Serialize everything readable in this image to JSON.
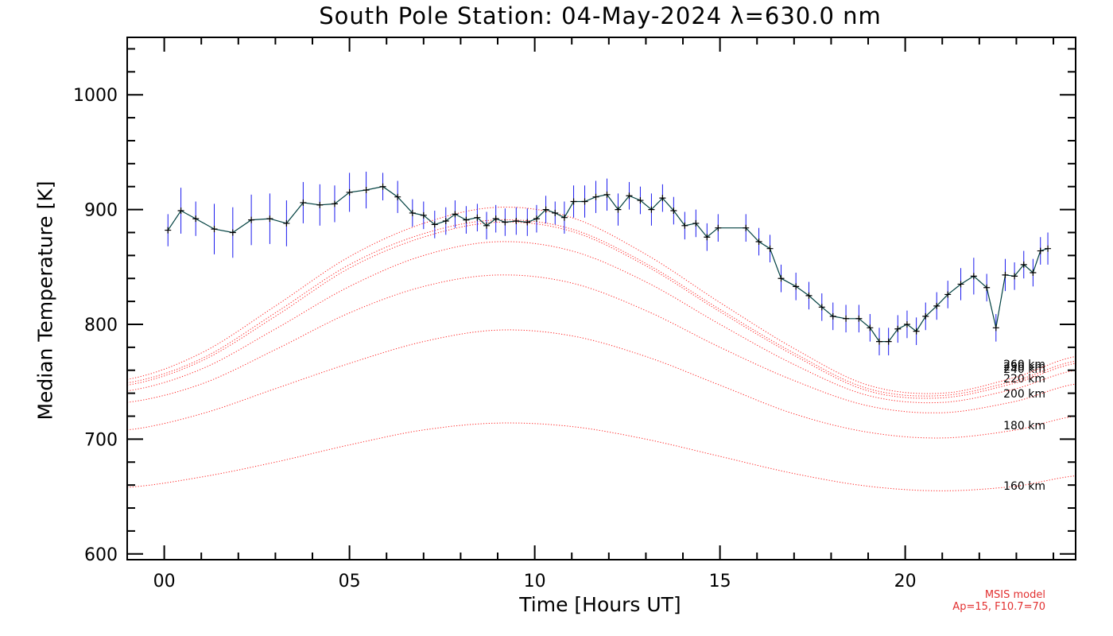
{
  "chart_data": {
    "type": "line",
    "title": "South Pole Station: 04-May-2024 λ=630.0 nm",
    "xlabel": "Time [Hours UT]",
    "ylabel": "Median Temperature [K]",
    "xlim": [
      -1.0,
      24.6
    ],
    "ylim": [
      595,
      1050
    ],
    "x_ticks": [
      0,
      5,
      10,
      15,
      20
    ],
    "x_tick_labels": [
      "00",
      "05",
      "10",
      "15",
      "20"
    ],
    "y_ticks": [
      600,
      700,
      800,
      900,
      1000
    ],
    "y_tick_labels": [
      "600",
      "700",
      "800",
      "900",
      "1000"
    ],
    "series": [
      {
        "color": "#004040",
        "errorbar_color": "#1a1aee",
        "points": [
          {
            "x": 0.1,
            "y": 882,
            "err": 14
          },
          {
            "x": 0.45,
            "y": 899,
            "err": 20
          },
          {
            "x": 0.85,
            "y": 892,
            "err": 15
          },
          {
            "x": 1.35,
            "y": 883,
            "err": 22
          },
          {
            "x": 1.85,
            "y": 880,
            "err": 22
          },
          {
            "x": 2.35,
            "y": 891,
            "err": 22
          },
          {
            "x": 2.85,
            "y": 892,
            "err": 22
          },
          {
            "x": 3.3,
            "y": 888,
            "err": 20
          },
          {
            "x": 3.75,
            "y": 906,
            "err": 18
          },
          {
            "x": 4.2,
            "y": 904,
            "err": 18
          },
          {
            "x": 4.6,
            "y": 905,
            "err": 16
          },
          {
            "x": 5.0,
            "y": 915,
            "err": 17
          },
          {
            "x": 5.45,
            "y": 917,
            "err": 16
          },
          {
            "x": 5.9,
            "y": 920,
            "err": 12
          },
          {
            "x": 6.3,
            "y": 911,
            "err": 14
          },
          {
            "x": 6.7,
            "y": 897,
            "err": 12
          },
          {
            "x": 7.0,
            "y": 895,
            "err": 12
          },
          {
            "x": 7.3,
            "y": 887,
            "err": 12
          },
          {
            "x": 7.6,
            "y": 890,
            "err": 12
          },
          {
            "x": 7.85,
            "y": 896,
            "err": 12
          },
          {
            "x": 8.15,
            "y": 891,
            "err": 12
          },
          {
            "x": 8.45,
            "y": 893,
            "err": 12
          },
          {
            "x": 8.7,
            "y": 886,
            "err": 12
          },
          {
            "x": 8.95,
            "y": 892,
            "err": 12
          },
          {
            "x": 9.2,
            "y": 889,
            "err": 12
          },
          {
            "x": 9.5,
            "y": 890,
            "err": 12
          },
          {
            "x": 9.8,
            "y": 889,
            "err": 12
          },
          {
            "x": 10.05,
            "y": 892,
            "err": 12
          },
          {
            "x": 10.3,
            "y": 900,
            "err": 12
          },
          {
            "x": 10.55,
            "y": 897,
            "err": 10
          },
          {
            "x": 10.8,
            "y": 893,
            "err": 14
          },
          {
            "x": 11.05,
            "y": 907,
            "err": 14
          },
          {
            "x": 11.35,
            "y": 907,
            "err": 14
          },
          {
            "x": 11.65,
            "y": 911,
            "err": 14
          },
          {
            "x": 11.95,
            "y": 913,
            "err": 14
          },
          {
            "x": 12.25,
            "y": 900,
            "err": 14
          },
          {
            "x": 12.55,
            "y": 912,
            "err": 12
          },
          {
            "x": 12.85,
            "y": 908,
            "err": 12
          },
          {
            "x": 13.15,
            "y": 900,
            "err": 14
          },
          {
            "x": 13.45,
            "y": 910,
            "err": 12
          },
          {
            "x": 13.75,
            "y": 899,
            "err": 12
          },
          {
            "x": 14.05,
            "y": 886,
            "err": 12
          },
          {
            "x": 14.35,
            "y": 888,
            "err": 12
          },
          {
            "x": 14.65,
            "y": 876,
            "err": 12
          },
          {
            "x": 14.95,
            "y": 884,
            "err": 12
          },
          {
            "x": 15.7,
            "y": 884,
            "err": 12
          },
          {
            "x": 16.05,
            "y": 872,
            "err": 12
          },
          {
            "x": 16.35,
            "y": 866,
            "err": 12
          },
          {
            "x": 16.65,
            "y": 840,
            "err": 12
          },
          {
            "x": 17.05,
            "y": 833,
            "err": 12
          },
          {
            "x": 17.4,
            "y": 825,
            "err": 12
          },
          {
            "x": 17.75,
            "y": 815,
            "err": 12
          },
          {
            "x": 18.05,
            "y": 807,
            "err": 12
          },
          {
            "x": 18.4,
            "y": 805,
            "err": 12
          },
          {
            "x": 18.75,
            "y": 805,
            "err": 12
          },
          {
            "x": 19.05,
            "y": 797,
            "err": 12
          },
          {
            "x": 19.3,
            "y": 785,
            "err": 12
          },
          {
            "x": 19.55,
            "y": 785,
            "err": 12
          },
          {
            "x": 19.8,
            "y": 796,
            "err": 12
          },
          {
            "x": 20.05,
            "y": 800,
            "err": 12
          },
          {
            "x": 20.3,
            "y": 794,
            "err": 12
          },
          {
            "x": 20.55,
            "y": 807,
            "err": 12
          },
          {
            "x": 20.85,
            "y": 816,
            "err": 12
          },
          {
            "x": 21.15,
            "y": 826,
            "err": 12
          },
          {
            "x": 21.5,
            "y": 835,
            "err": 14
          },
          {
            "x": 21.85,
            "y": 842,
            "err": 16
          },
          {
            "x": 22.2,
            "y": 832,
            "err": 12
          },
          {
            "x": 22.45,
            "y": 797,
            "err": 12
          },
          {
            "x": 22.7,
            "y": 843,
            "err": 14
          },
          {
            "x": 22.95,
            "y": 842,
            "err": 12
          },
          {
            "x": 23.2,
            "y": 852,
            "err": 12
          },
          {
            "x": 23.45,
            "y": 845,
            "err": 12
          },
          {
            "x": 23.65,
            "y": 864,
            "err": 12
          },
          {
            "x": 23.85,
            "y": 866,
            "err": 14
          }
        ]
      }
    ],
    "model_curves": [
      {
        "label": "160 km",
        "color": "#ff2020",
        "x": [
          -1,
          1,
          3,
          5,
          7,
          9,
          11,
          13,
          15,
          17,
          19,
          21,
          23,
          24.6
        ],
        "y": [
          658,
          667,
          680,
          695,
          708,
          714,
          711,
          700,
          685,
          670,
          659,
          655,
          659,
          668
        ]
      },
      {
        "label": "180 km",
        "color": "#ff2020",
        "x": [
          -1,
          1,
          3,
          5,
          7,
          9,
          11,
          13,
          15,
          17,
          19,
          21,
          23,
          24.6
        ],
        "y": [
          708,
          722,
          744,
          766,
          785,
          795,
          790,
          772,
          747,
          722,
          706,
          701,
          708,
          720
        ]
      },
      {
        "label": "200 km",
        "color": "#ff2020",
        "x": [
          -1,
          1,
          3,
          5,
          7,
          9,
          11,
          13,
          15,
          17,
          19,
          21,
          23,
          24.6
        ],
        "y": [
          732,
          748,
          778,
          810,
          833,
          843,
          836,
          812,
          780,
          751,
          729,
          723,
          733,
          748
        ]
      },
      {
        "label": "220 km",
        "color": "#ff2020",
        "x": [
          -1,
          1,
          3,
          5,
          7,
          9,
          11,
          13,
          15,
          17,
          19,
          21,
          23,
          24.6
        ],
        "y": [
          742,
          761,
          796,
          833,
          860,
          872,
          864,
          837,
          800,
          765,
          738,
          732,
          744,
          760
        ]
      },
      {
        "label": "240 km",
        "color": "#ff2020",
        "x": [
          -1,
          1,
          3,
          5,
          7,
          9,
          11,
          13,
          15,
          17,
          19,
          21,
          23,
          24.6
        ],
        "y": [
          747,
          768,
          807,
          849,
          876,
          889,
          881,
          851,
          811,
          773,
          742,
          736,
          749,
          766
        ]
      },
      {
        "label": "250 km",
        "color": "#ff2020",
        "x": [
          -1,
          1,
          3,
          5,
          7,
          9,
          11,
          13,
          15,
          17,
          19,
          21,
          23,
          24.6
        ],
        "y": [
          749,
          770,
          810,
          852,
          879,
          891,
          883,
          853,
          813,
          775,
          744,
          738,
          751,
          768
        ]
      },
      {
        "label": "260 km",
        "color": "#ff2020",
        "x": [
          -1,
          1,
          3,
          5,
          7,
          9,
          11,
          13,
          15,
          17,
          19,
          21,
          23,
          24.6
        ],
        "y": [
          752,
          775,
          816,
          859,
          888,
          902,
          893,
          861,
          819,
          779,
          747,
          740,
          754,
          772
        ]
      }
    ],
    "annotation": {
      "line1": "MSIS model",
      "line2": "Ap=15, F10.7=70"
    }
  }
}
